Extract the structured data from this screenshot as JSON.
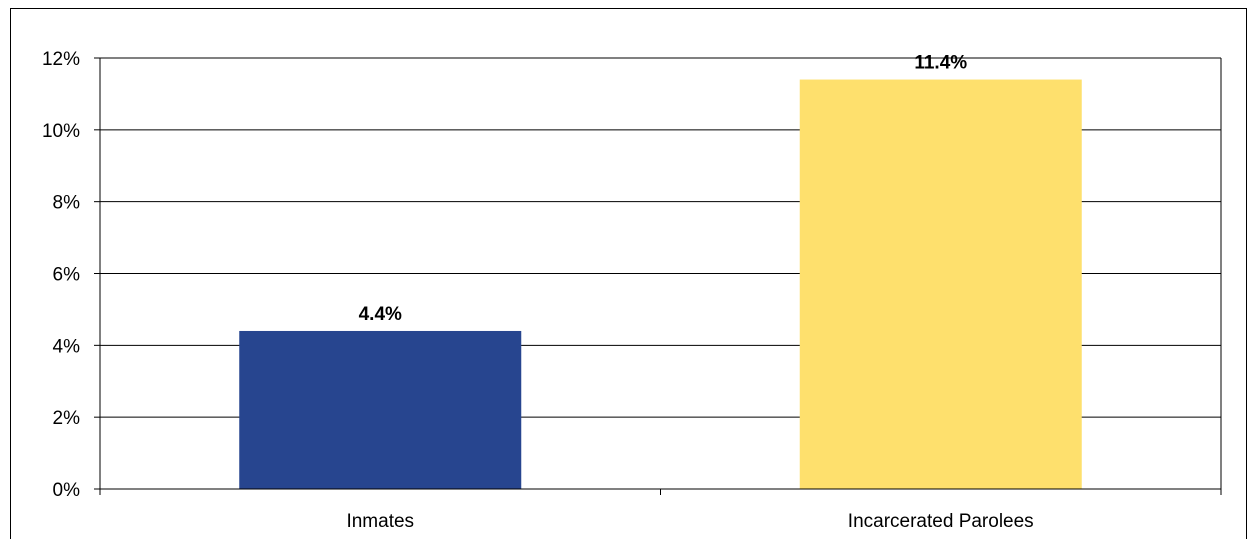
{
  "chart_data": {
    "type": "bar",
    "title": "",
    "xlabel": "",
    "ylabel": "",
    "categories": [
      "Inmates",
      "Incarcerated Parolees"
    ],
    "values": [
      4.4,
      11.4
    ],
    "data_labels": [
      "4.4%",
      "11.4%"
    ],
    "bar_colors": [
      "#27458F",
      "#FEE06D"
    ],
    "ylim": [
      0,
      12
    ],
    "yticks": [
      0,
      2,
      4,
      6,
      8,
      10,
      12
    ],
    "ytick_labels": [
      "0%",
      "2%",
      "4%",
      "6%",
      "8%",
      "10%",
      "12%"
    ],
    "grid": true,
    "legend": "none"
  }
}
